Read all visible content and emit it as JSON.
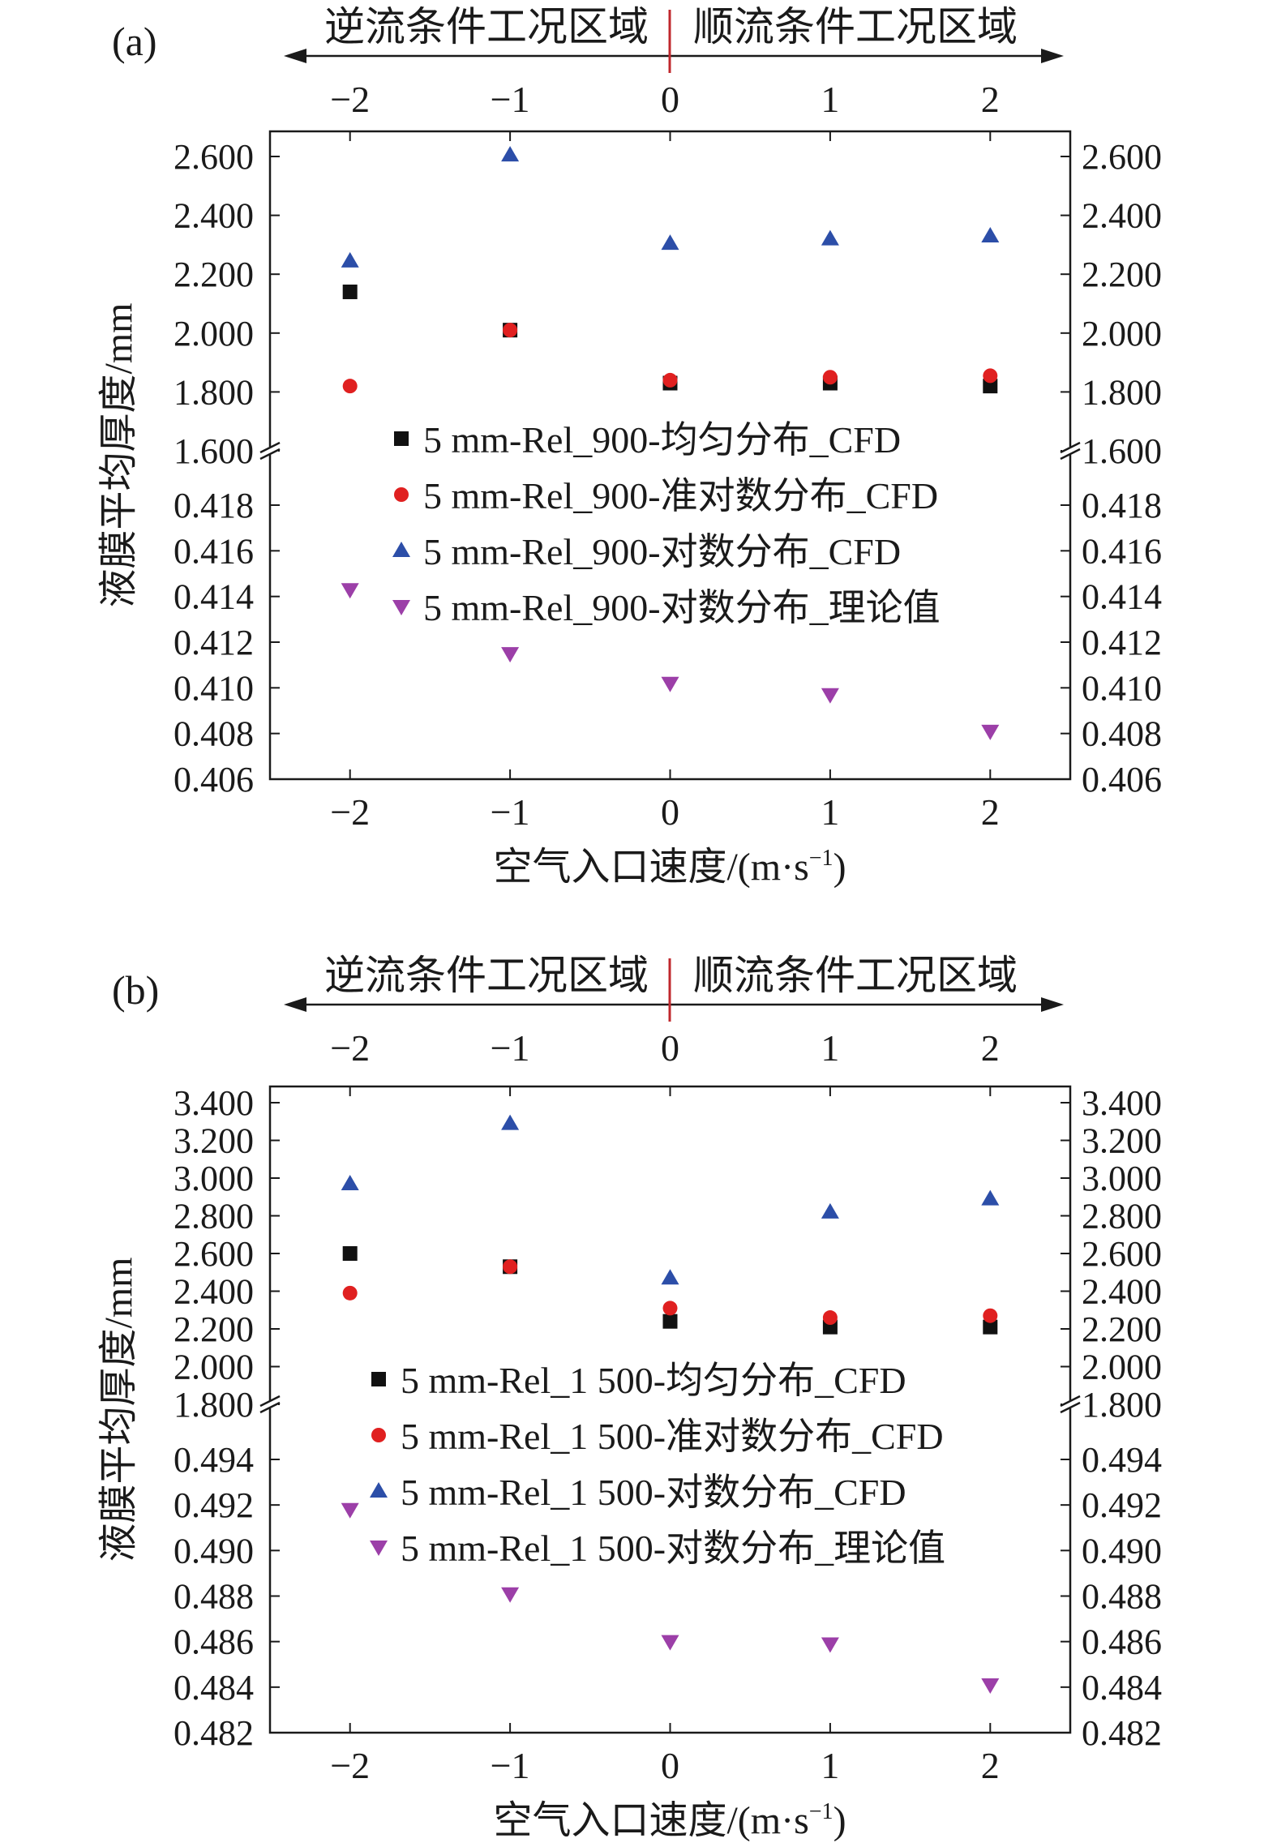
{
  "chart_data": [
    {
      "type": "scatter",
      "panel_label": "(a)",
      "region_left": "逆流条件工况区域",
      "region_right": "顺流条件工况区域",
      "xlabel": "空气入口速度/(m·s",
      "xlabel_sup": "−1",
      "xlabel_end": ")",
      "ylabel": "液膜平均厚度/mm",
      "x": [
        -2,
        -1,
        0,
        1,
        2
      ],
      "xticks": [
        "−2",
        "−1",
        "0",
        "1",
        "2"
      ],
      "xlim": [
        -2.5,
        2.5
      ],
      "upper_axis": {
        "ylim": [
          1.6,
          2.6
        ],
        "ticks": [
          "2.600",
          "2.400",
          "2.200",
          "2.000",
          "1.800",
          "1.600"
        ]
      },
      "lower_axis": {
        "ylim": [
          0.406,
          0.4195
        ],
        "ticks": [
          "0.418",
          "0.416",
          "0.414",
          "0.412",
          "0.410",
          "0.408",
          "0.406"
        ]
      },
      "series": [
        {
          "name": "5 mm-Rel_900-均匀分布_CFD",
          "marker": "square",
          "color": "#111111",
          "axis": "upper",
          "values": [
            2.14,
            2.01,
            1.83,
            1.83,
            1.82
          ]
        },
        {
          "name": "5 mm-Rel_900-准对数分布_CFD",
          "marker": "circle",
          "color": "#e02020",
          "axis": "upper",
          "values": [
            1.82,
            2.01,
            1.84,
            1.85,
            1.855
          ]
        },
        {
          "name": "5 mm-Rel_900-对数分布_CFD",
          "marker": "triangle-up",
          "color": "#2c4ea8",
          "axis": "upper",
          "values": [
            2.245,
            2.605,
            2.305,
            2.32,
            2.33
          ]
        },
        {
          "name": "5 mm-Rel_900-对数分布_理论值",
          "marker": "triangle-down",
          "color": "#9c3fa8",
          "axis": "lower",
          "values": [
            0.4143,
            0.4115,
            0.4102,
            0.4097,
            0.4081
          ]
        }
      ]
    },
    {
      "type": "scatter",
      "panel_label": "(b)",
      "region_left": "逆流条件工况区域",
      "region_right": "顺流条件工况区域",
      "xlabel": "空气入口速度/(m·s",
      "xlabel_sup": "−1",
      "xlabel_end": ")",
      "ylabel": "液膜平均厚度/mm",
      "x": [
        -2,
        -1,
        0,
        1,
        2
      ],
      "xticks": [
        "−2",
        "−1",
        "0",
        "1",
        "2"
      ],
      "xlim": [
        -2.5,
        2.5
      ],
      "upper_axis": {
        "ylim": [
          1.8,
          3.4
        ],
        "ticks": [
          "3.400",
          "3.200",
          "3.000",
          "2.800",
          "2.600",
          "2.400",
          "2.200",
          "2.000",
          "1.800"
        ]
      },
      "lower_axis": {
        "ylim": [
          0.482,
          0.4955
        ],
        "ticks": [
          "0.494",
          "0.492",
          "0.490",
          "0.488",
          "0.486",
          "0.484",
          "0.482"
        ]
      },
      "series": [
        {
          "name": "5 mm-Rel_1 500-均匀分布_CFD",
          "marker": "square",
          "color": "#111111",
          "axis": "upper",
          "values": [
            2.6,
            2.53,
            2.24,
            2.21,
            2.21
          ]
        },
        {
          "name": "5 mm-Rel_1 500-准对数分布_CFD",
          "marker": "circle",
          "color": "#e02020",
          "axis": "upper",
          "values": [
            2.39,
            2.53,
            2.31,
            2.26,
            2.27
          ]
        },
        {
          "name": "5 mm-Rel_1 500-对数分布_CFD",
          "marker": "triangle-up",
          "color": "#2c4ea8",
          "axis": "upper",
          "values": [
            2.97,
            3.29,
            2.47,
            2.82,
            2.89
          ]
        },
        {
          "name": "5 mm-Rel_1 500-对数分布_理论值",
          "marker": "triangle-down",
          "color": "#9c3fa8",
          "axis": "lower",
          "values": [
            0.4918,
            0.4881,
            0.486,
            0.4859,
            0.4841
          ]
        }
      ]
    }
  ]
}
